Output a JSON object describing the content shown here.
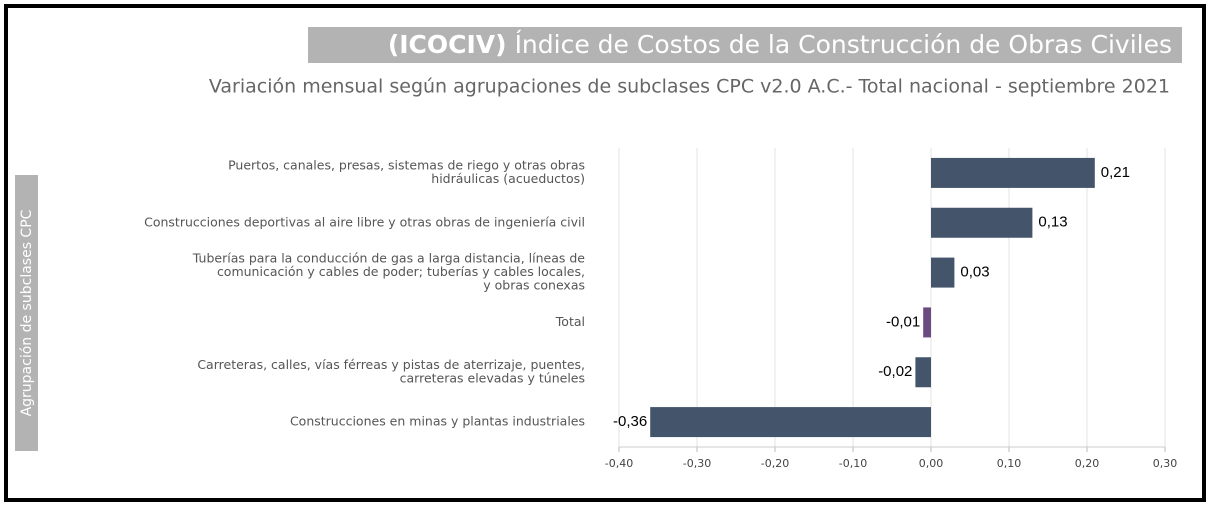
{
  "chart_data": {
    "type": "hbar",
    "title_prefix": "(ICOCIV)",
    "title": "Índice de Costos de la Construcción de Obras Civiles",
    "subtitle": "Variación mensual  según agrupaciones de subclases CPC v2.0 A.C.- Total nacional - septiembre 2021",
    "y_label": "Agrupación de subclases CPC",
    "categories": [
      [
        "Puertos, canales, presas, sistemas de riego y otras obras",
        "hidráulicas (acueductos)"
      ],
      [
        "Construcciones deportivas al aire libre y otras obras de ingeniería civil"
      ],
      [
        "Tuberías para la conducción de gas a larga distancia, líneas de",
        "comunicación y cables de poder; tuberías y cables locales,",
        "y obras conexas"
      ],
      [
        "Total"
      ],
      [
        "Carreteras, calles, vías férreas y pistas de aterrizaje, puentes,",
        "carreteras elevadas y túneles"
      ],
      [
        "Construcciones  en minas y plantas industriales"
      ]
    ],
    "values": [
      0.21,
      0.13,
      0.03,
      -0.01,
      -0.02,
      -0.36
    ],
    "value_labels": [
      "0,21",
      "0,13",
      "0,03",
      "-0,01",
      "-0,02",
      "-0,36"
    ],
    "colors": [
      "#44546a",
      "#44546a",
      "#44546a",
      "#6b4a80",
      "#44546a",
      "#44546a"
    ],
    "xlim": [
      -0.4,
      0.3
    ],
    "xticks": [
      {
        "value": -0.4,
        "label": "-0,40"
      },
      {
        "value": -0.3,
        "label": "-0,30"
      },
      {
        "value": -0.2,
        "label": "-0,20"
      },
      {
        "value": -0.1,
        "label": "-0,10"
      },
      {
        "value": 0,
        "label": "0,00"
      },
      {
        "value": 0.1,
        "label": "0,10"
      },
      {
        "value": 0.2,
        "label": "0,20"
      },
      {
        "value": 0.3,
        "label": "0,30"
      }
    ],
    "grid": true
  }
}
